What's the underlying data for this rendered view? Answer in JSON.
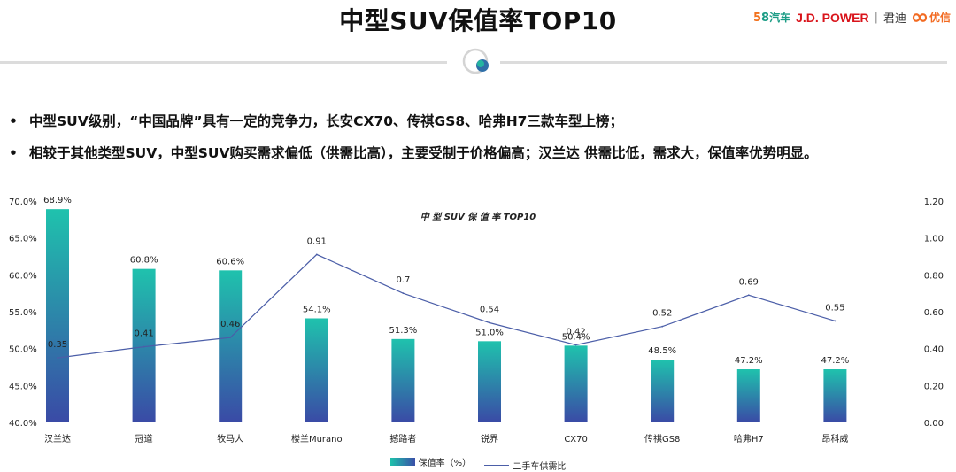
{
  "page": {
    "title": "中型SUV保值率TOP10"
  },
  "logos": {
    "logo58_5": "5",
    "logo58_8": "8",
    "logo58_text": "汽车",
    "jdpower": "J.D. POWER",
    "jundi": "君迪",
    "youxin": "优信"
  },
  "bullets": [
    {
      "symbol": "•",
      "text": "中型SUV级别，“中国品牌”具有一定的竞争力，长安CX70、传祺GS8、哈弗H7三款车型上榜；"
    },
    {
      "symbol": "•",
      "text": "相较于其他类型SUV，中型SUV购买需求偏低（供需比高），主要受制于价格偏高；汉兰达 供需比低，需求大，保值率优势明显。"
    }
  ],
  "chart_data": {
    "type": "bar",
    "title": "中 型 SUV 保 值 率 TOP10",
    "categories": [
      "汉兰达",
      "冠道",
      "牧马人",
      "楼兰Murano",
      "撼路者",
      "锐界",
      "CX70",
      "传祺GS8",
      "哈弗H7",
      "昂科威"
    ],
    "series": [
      {
        "name": "保值率（%）",
        "type": "bar",
        "axis": "left",
        "values": [
          68.9,
          60.8,
          60.6,
          54.1,
          51.3,
          51.0,
          50.4,
          48.5,
          47.2,
          47.2
        ],
        "labels": [
          "68.9%",
          "60.8%",
          "60.6%",
          "54.1%",
          "51.3%",
          "51.0%",
          "50.4%",
          "48.5%",
          "47.2%",
          "47.2%"
        ]
      },
      {
        "name": "二手车供需比",
        "type": "line",
        "axis": "right",
        "values": [
          0.35,
          0.41,
          0.46,
          0.91,
          0.7,
          0.54,
          0.42,
          0.52,
          0.69,
          0.55
        ],
        "labels": [
          "0.35",
          "0.41",
          "0.46",
          "0.91",
          "0.7",
          "0.54",
          "0.42",
          "0.52",
          "0.69",
          "0.55"
        ]
      }
    ],
    "y_left": {
      "min": 40,
      "max": 70,
      "ticks": [
        "40.0%",
        "45.0%",
        "50.0%",
        "55.0%",
        "60.0%",
        "65.0%",
        "70.0%"
      ]
    },
    "y_right": {
      "min": 0,
      "max": 1.2,
      "ticks": [
        "0.00",
        "0.20",
        "0.40",
        "0.60",
        "0.80",
        "1.00",
        "1.20"
      ]
    },
    "colors": {
      "bar_top": "#1fc2ad",
      "bar_bottom": "#3a4aa6",
      "line": "#4b5ea8"
    }
  }
}
